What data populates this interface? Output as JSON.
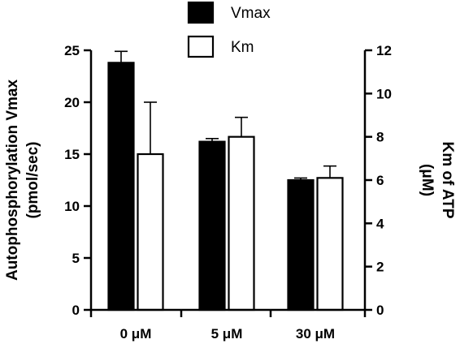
{
  "chart_data": {
    "type": "bar",
    "categories": [
      "0 μM",
      "5 μM",
      "30 μM"
    ],
    "series": [
      {
        "name": "Vmax",
        "axis": "left",
        "fill": "#000000",
        "values": [
          23.8,
          16.2,
          12.5
        ],
        "errors": [
          1.1,
          0.3,
          0.2
        ]
      },
      {
        "name": "Km",
        "axis": "right",
        "fill": "#ffffff",
        "values": [
          7.2,
          8.0,
          6.1
        ],
        "errors": [
          2.4,
          0.9,
          0.55
        ]
      }
    ],
    "left_axis": {
      "label_line1": "Autophosphorylation Vmax",
      "label_line2": "(pmol/sec)",
      "ylim": [
        0,
        25
      ],
      "ticks": [
        "0",
        "5",
        "10",
        "15",
        "20",
        "25"
      ]
    },
    "right_axis": {
      "label_line1": "Km of ATP",
      "label_line2": "(μM)",
      "ylim": [
        0,
        12
      ],
      "ticks": [
        "0",
        "2",
        "4",
        "6",
        "8",
        "10",
        "12"
      ]
    },
    "legend": {
      "placement": "top-center",
      "entries": [
        "Vmax",
        "Km"
      ]
    },
    "grid": false
  }
}
